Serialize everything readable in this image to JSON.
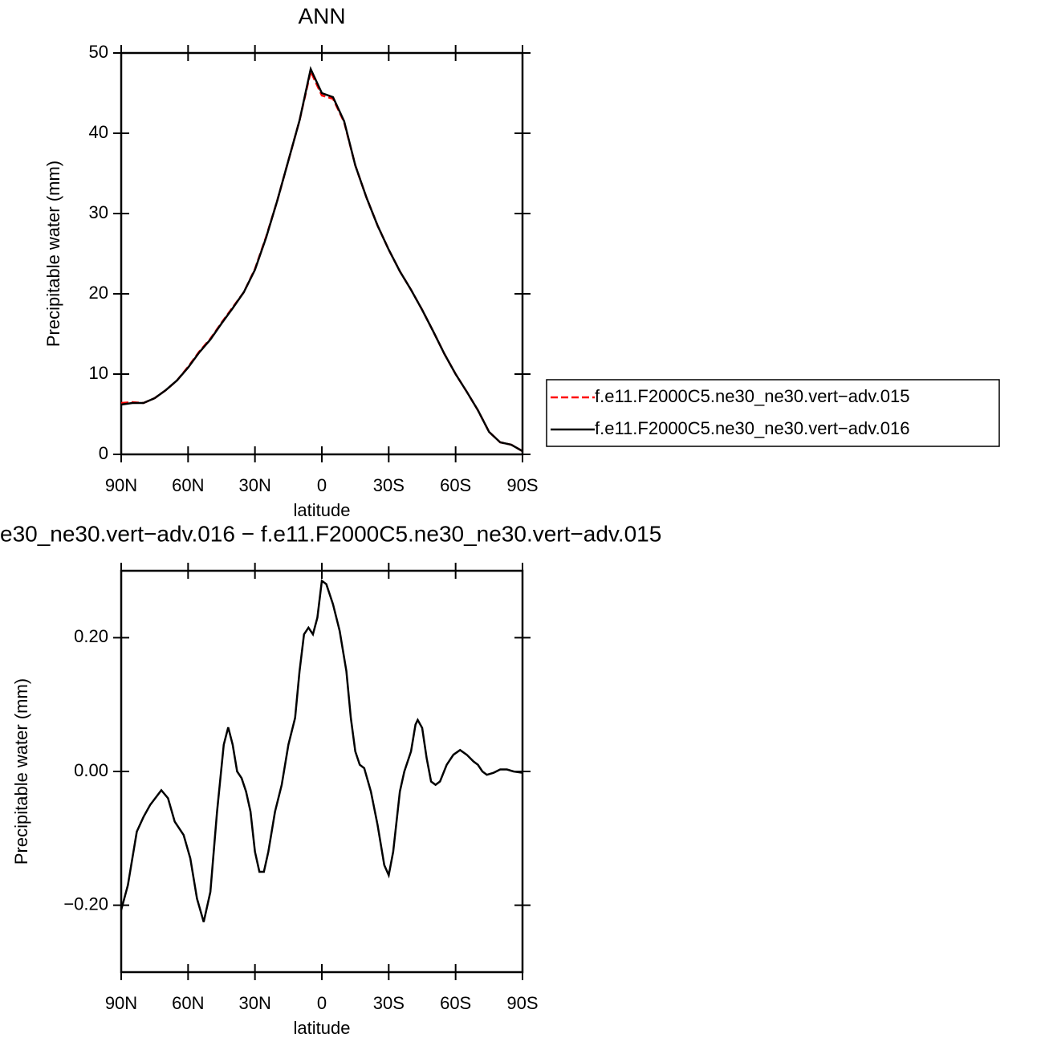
{
  "chart_data": [
    {
      "type": "line",
      "title": "ANN",
      "xlabel": "latitude",
      "ylabel": "Precipitable water (mm)",
      "x": [
        90,
        85,
        80,
        75,
        70,
        65,
        60,
        55,
        50,
        45,
        40,
        35,
        30,
        25,
        20,
        15,
        10,
        5,
        0,
        -5,
        -10,
        -15,
        -20,
        -25,
        -30,
        -35,
        -40,
        -45,
        -50,
        -55,
        -60,
        -65,
        -70,
        -75,
        -80,
        -85,
        -90
      ],
      "series": [
        {
          "name": "f.e11.F2000C5.ne30_ne30.vert−adv.015",
          "color": "#ff0000",
          "linestyle": "dashed",
          "values": [
            6.4,
            6.5,
            6.4,
            7.0,
            8.0,
            9.2,
            10.9,
            12.8,
            14.4,
            16.4,
            18.3,
            20.2,
            23.1,
            27.1,
            31.6,
            36.6,
            41.6,
            47.7,
            44.7,
            44.3,
            41.4,
            36.0,
            32.0,
            28.5,
            25.5,
            22.8,
            20.5,
            18.0,
            15.3,
            12.5,
            10.0,
            7.8,
            5.5,
            2.8,
            1.5,
            1.2,
            0.4
          ]
        },
        {
          "name": "f.e11.F2000C5.ne30_ne30.vert−adv.016",
          "color": "#000000",
          "linestyle": "solid",
          "values": [
            6.2,
            6.4,
            6.4,
            7.0,
            8.0,
            9.2,
            10.8,
            12.7,
            14.3,
            16.3,
            18.2,
            20.2,
            23.0,
            27.0,
            31.6,
            36.6,
            41.6,
            48.0,
            45.0,
            44.5,
            41.5,
            36.0,
            32.0,
            28.5,
            25.5,
            22.8,
            20.5,
            18.0,
            15.3,
            12.5,
            10.0,
            7.8,
            5.5,
            2.8,
            1.5,
            1.2,
            0.4
          ]
        }
      ],
      "xlim": [
        90,
        -90
      ],
      "ylim": [
        0,
        50
      ],
      "xticks": [
        {
          "value": 90,
          "label": "90N"
        },
        {
          "value": 60,
          "label": "60N"
        },
        {
          "value": 30,
          "label": "30N"
        },
        0,
        {
          "value": -30,
          "label": "30S"
        },
        {
          "value": -60,
          "label": "60S"
        },
        {
          "value": -90,
          "label": "90S"
        }
      ],
      "yticks": [
        0,
        10,
        20,
        30,
        40,
        50
      ],
      "legend": "outside-right"
    },
    {
      "type": "line",
      "title": "e30_ne30.vert−adv.016 − f.e11.F2000C5.ne30_ne30.vert−adv.015",
      "xlabel": "latitude",
      "ylabel": "Precipitable water (mm)",
      "x": [
        90,
        87,
        83,
        80,
        77,
        72,
        69,
        66,
        62,
        59,
        56,
        53,
        50,
        47,
        44,
        42,
        40,
        38,
        36,
        34,
        32,
        30,
        28,
        26,
        24,
        21,
        18,
        15,
        12,
        10,
        8,
        6,
        4,
        2,
        0,
        -2,
        -5,
        -8,
        -11,
        -13,
        -15,
        -17,
        -19,
        -22,
        -25,
        -28,
        -30,
        -32,
        -35,
        -37,
        -40,
        -42,
        -43,
        -45,
        -47,
        -49,
        -51,
        -53,
        -56,
        -59,
        -62,
        -65,
        -68,
        -70,
        -72,
        -74,
        -77,
        -80,
        -83,
        -86,
        -90
      ],
      "series": [
        {
          "color": "#000000",
          "linestyle": "solid",
          "values": [
            -0.207,
            -0.17,
            -0.09,
            -0.068,
            -0.05,
            -0.028,
            -0.04,
            -0.075,
            -0.095,
            -0.13,
            -0.19,
            -0.225,
            -0.18,
            -0.06,
            0.04,
            0.066,
            0.04,
            0.0,
            -0.01,
            -0.03,
            -0.06,
            -0.12,
            -0.15,
            -0.15,
            -0.12,
            -0.06,
            -0.02,
            0.04,
            0.08,
            0.15,
            0.205,
            0.215,
            0.205,
            0.23,
            0.285,
            0.28,
            0.25,
            0.21,
            0.15,
            0.08,
            0.03,
            0.01,
            0.005,
            -0.03,
            -0.08,
            -0.14,
            -0.155,
            -0.12,
            -0.03,
            0.0,
            0.03,
            0.07,
            0.077,
            0.065,
            0.02,
            -0.015,
            -0.02,
            -0.015,
            0.01,
            0.025,
            0.032,
            0.025,
            0.015,
            0.01,
            0.0,
            -0.005,
            -0.002,
            0.003,
            0.003,
            0.0,
            -0.002
          ]
        }
      ],
      "xlim": [
        90,
        -90
      ],
      "ylim": [
        -0.3,
        0.3
      ],
      "xticks": [
        {
          "value": 90,
          "label": "90N"
        },
        {
          "value": 60,
          "label": "60N"
        },
        {
          "value": 30,
          "label": "30N"
        },
        0,
        {
          "value": -30,
          "label": "30S"
        },
        {
          "value": -60,
          "label": "60S"
        },
        {
          "value": -90,
          "label": "90S"
        }
      ],
      "yticks": [
        {
          "value": -0.2,
          "label": "−0.20"
        },
        {
          "value": 0,
          "label": "0.00"
        },
        {
          "value": 0.2,
          "label": "0.20"
        }
      ]
    }
  ]
}
